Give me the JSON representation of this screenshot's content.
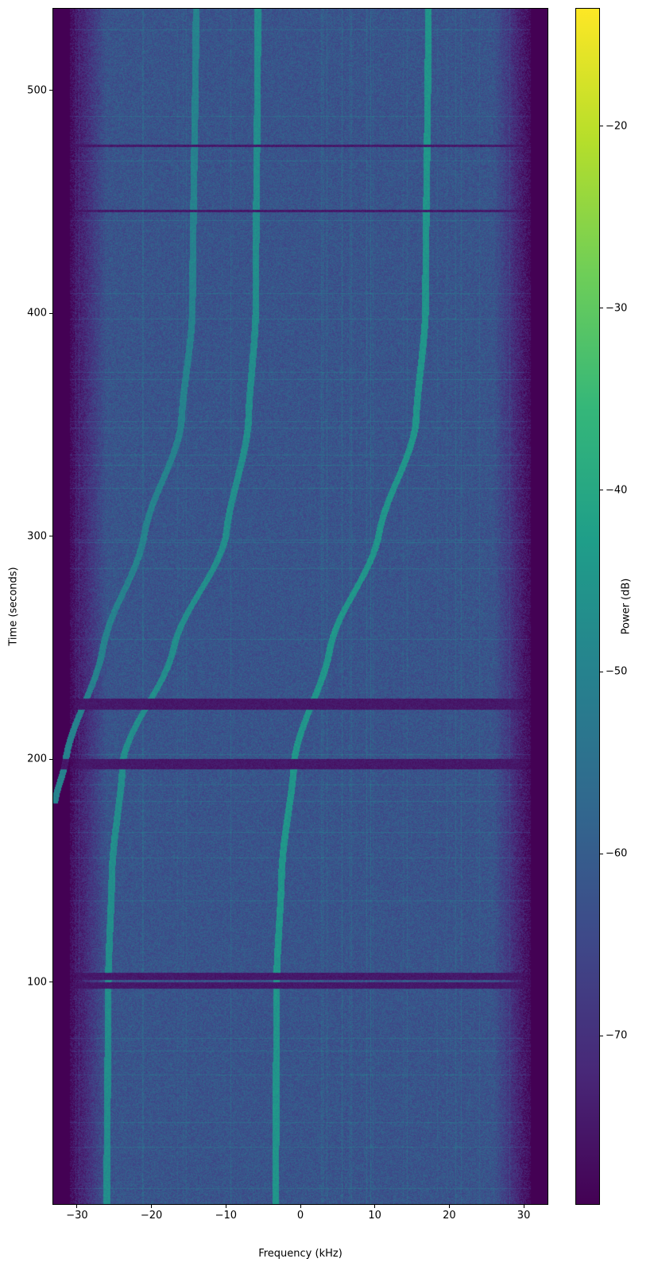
{
  "chart_data": {
    "type": "heatmap",
    "subtype": "spectrogram",
    "title": "",
    "xlabel": "Frequency (kHz)",
    "ylabel": "Time (seconds)",
    "colorbar_label": "Power (dB)",
    "colormap": "viridis",
    "xlim": [
      -33.3,
      33.3
    ],
    "ylim": [
      0,
      537
    ],
    "clim": [
      -79.3,
      -13.5
    ],
    "xticks": [
      -30,
      -20,
      -10,
      0,
      10,
      20,
      30
    ],
    "xtick_labels": [
      "−30",
      "−20",
      "−10",
      "0",
      "10",
      "20",
      "30"
    ],
    "yticks": [
      100,
      200,
      300,
      400,
      500
    ],
    "ytick_labels": [
      "100",
      "200",
      "300",
      "400",
      "500"
    ],
    "cticks": [
      -20,
      -30,
      -40,
      -50,
      -60,
      -70
    ],
    "ctick_labels": [
      "−20",
      "−30",
      "−40",
      "−50",
      "−60",
      "−70"
    ],
    "grid": false,
    "noise_floor_db": -62,
    "passband_khz": [
      -30,
      30
    ],
    "traces": [
      {
        "points": [
          [
            0,
            -3.3
          ],
          [
            100,
            -3.2
          ],
          [
            150,
            -2.5
          ],
          [
            200,
            -0.8
          ],
          [
            250,
            4
          ],
          [
            300,
            10.5
          ],
          [
            350,
            15.5
          ],
          [
            400,
            16.8
          ],
          [
            537,
            17.2
          ]
        ],
        "power_db": -45
      },
      {
        "points": [
          [
            0,
            -26
          ],
          [
            100,
            -25.8
          ],
          [
            150,
            -25.3
          ],
          [
            200,
            -23.8
          ],
          [
            250,
            -17
          ],
          [
            300,
            -10
          ],
          [
            350,
            -7
          ],
          [
            400,
            -6
          ],
          [
            537,
            -5.7
          ]
        ],
        "power_db": -47
      },
      {
        "points": [
          [
            180,
            -33
          ],
          [
            200,
            -31.5
          ],
          [
            250,
            -26.5
          ],
          [
            300,
            -21
          ],
          [
            350,
            -16
          ],
          [
            400,
            -14.5
          ],
          [
            537,
            -14
          ]
        ],
        "power_db": -50
      }
    ],
    "dropout_bands_s": [
      [
        97,
        100
      ],
      [
        101,
        104
      ],
      [
        195.5,
        200
      ],
      [
        222,
        227
      ],
      [
        445.5,
        446.5
      ],
      [
        474.5,
        475.5
      ]
    ]
  }
}
